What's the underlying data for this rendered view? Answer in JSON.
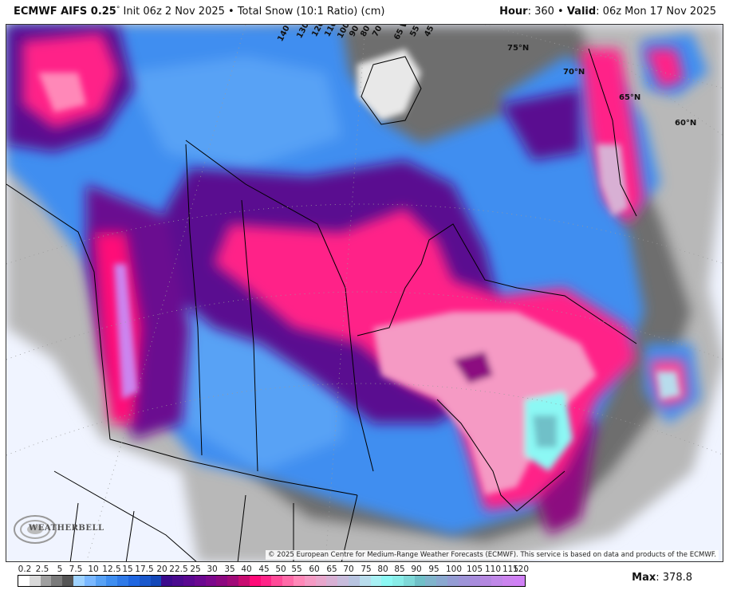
{
  "header": {
    "model": "ECMWF AIFS 0.25",
    "degree": "°",
    "init": " Init 06z 2 Nov 2025 • Total Snow (10:1 Ratio) (cm)",
    "hour_label": "Hour",
    "hour_value": ": 360 • ",
    "valid_label": "Valid",
    "valid_value": ": 06z Mon 17 Nov 2025"
  },
  "map": {
    "latitude_labels": [
      "75°N",
      "70°N",
      "65°N",
      "60°N"
    ],
    "longitude_labels": [
      "140 W",
      "130 W",
      "120 W",
      "110 W",
      "100 W",
      "90 W",
      "80 W",
      "70 W",
      "65 W",
      "55 W",
      "45 W"
    ],
    "copyright": "© 2025 European Centre for Medium-Range Weather Forecasts (ECMWF). This service is based on data and products of the ECMWF.",
    "logo_text": "WEATHERBELL"
  },
  "colorbar": {
    "ticks": [
      "0.2",
      "2.5",
      "5",
      "7.5",
      "10",
      "12.5",
      "15",
      "17.5",
      "20",
      "22.5",
      "25",
      "30",
      "35",
      "40",
      "45",
      "50",
      "55",
      "60",
      "65",
      "70",
      "75",
      "80",
      "85",
      "90",
      "95",
      "100",
      "105",
      "110",
      "115",
      "120"
    ],
    "colors": [
      "#ffffff",
      "#d9d9d9",
      "#a0a0a0",
      "#7a7a7a",
      "#555555",
      "#9fd3ff",
      "#7ab8ff",
      "#58a2f5",
      "#3f8ef0",
      "#2f7ae8",
      "#1f66e0",
      "#1a58cc",
      "#1448b8",
      "#3b0a8c",
      "#4a0a8e",
      "#5a0890",
      "#6b0890",
      "#7c088c",
      "#8c0880",
      "#a00a78",
      "#c80c70",
      "#ff0a78",
      "#ff2488",
      "#ff4a98",
      "#ff6aa8",
      "#ff88b8",
      "#f59ac4",
      "#e8a6cc",
      "#d8b0d4",
      "#c8bcdc",
      "#b8c4e0",
      "#b8dcec",
      "#a8f0f4",
      "#8cf8f4",
      "#88ece8",
      "#7ed8d8",
      "#70c0c8",
      "#80b4cc",
      "#8aa8d0",
      "#949cd4",
      "#9e94d8",
      "#a88cdc",
      "#b488e0",
      "#c088e8",
      "#cc84ef",
      "#d080f5"
    ],
    "max_label": "Max",
    "max_value": ": 378.8"
  },
  "colors": {
    "background": "#f0f4ff",
    "snow_blue": "#3f8ef0",
    "snow_purple": "#5a0890",
    "snow_pink": "#ff2488",
    "snow_cyan": "#8cf8f4",
    "snow_lavender": "#cc84ef",
    "trace_gray": "#7a7a7a"
  }
}
